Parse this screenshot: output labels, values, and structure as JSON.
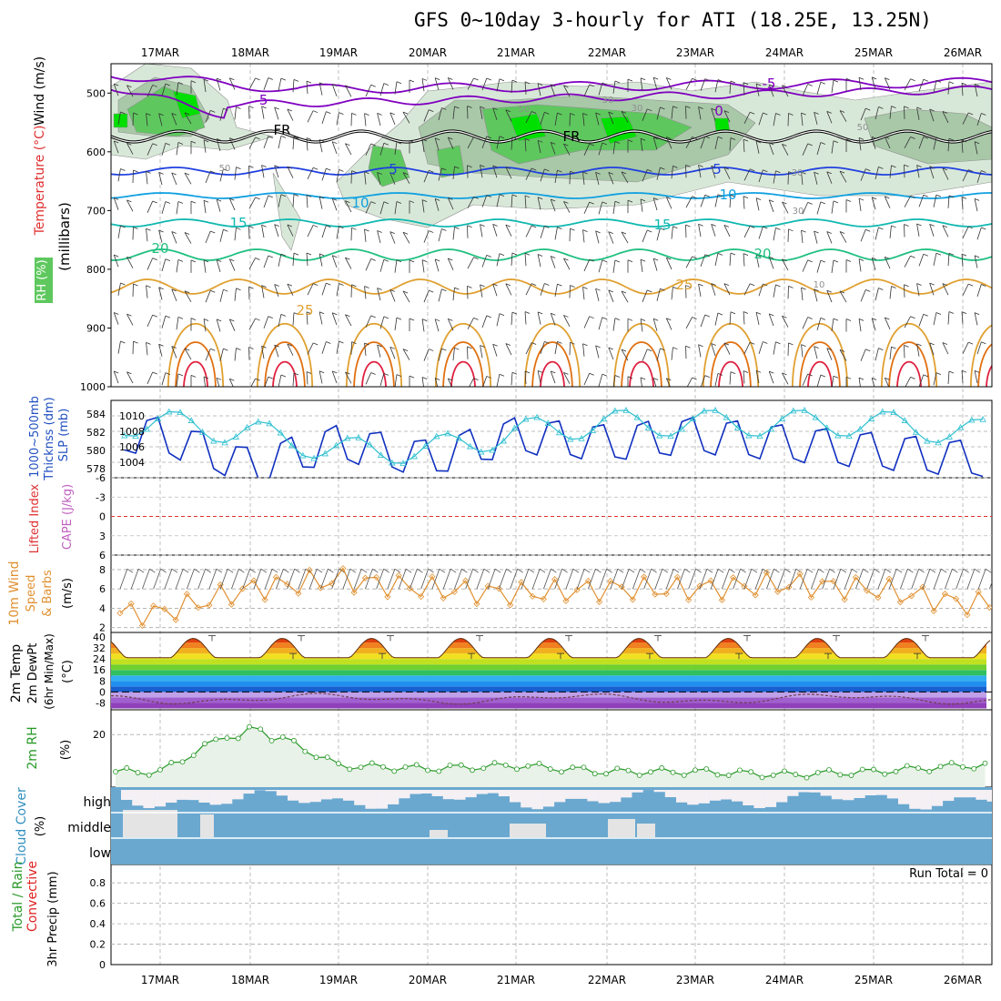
{
  "title": "GFS 0~10day 3-hourly for ATI (18.25E, 13.25N)",
  "dates": [
    "17MAR",
    "18MAR",
    "19MAR",
    "20MAR",
    "21MAR",
    "22MAR",
    "23MAR",
    "24MAR",
    "25MAR",
    "26MAR"
  ],
  "colors": {
    "rh_light": "#d8e8d8",
    "rh_mid": "#a8c8a8",
    "rh_green": "#5ec85e",
    "rh_bright": "#00e000",
    "freezing": "#000000",
    "purple": "#8000c0",
    "blue": "#2040e0",
    "lightblue": "#10a0e0",
    "teal": "#10b8b0",
    "green": "#20c080",
    "orange": "#e0a030",
    "darkorange": "#e07010",
    "red": "#e02040",
    "magenta": "#c000a0",
    "slp": "#1030c0",
    "thickness": "#30c0d0",
    "wind10": "#e09030",
    "rh2m": "#2a9a2a",
    "cloud": "#6aa8d0",
    "precip_conv": "#e02020"
  },
  "panels": {
    "upper": {
      "labels": [
        "Wind (m/s)",
        "Temperature (°C)",
        "RH (%)"
      ],
      "axis_label": "(millibars)",
      "yticks": [
        "500",
        "600",
        "700",
        "800",
        "900",
        "1000"
      ],
      "contour_labels": [
        {
          "text": "-5",
          "color": "purple"
        },
        {
          "text": "-5",
          "color": "purple"
        },
        {
          "text": "0",
          "color": "purple"
        },
        {
          "text": "FR",
          "color": "freezing"
        },
        {
          "text": "FR",
          "color": "freezing"
        },
        {
          "text": "5",
          "color": "blue"
        },
        {
          "text": "5",
          "color": "blue"
        },
        {
          "text": "10",
          "color": "lightblue"
        },
        {
          "text": "10",
          "color": "lightblue"
        },
        {
          "text": "15",
          "color": "teal"
        },
        {
          "text": "15",
          "color": "teal"
        },
        {
          "text": "20",
          "color": "green"
        },
        {
          "text": "20",
          "color": "green"
        },
        {
          "text": "25",
          "color": "orange"
        },
        {
          "text": "25",
          "color": "orange"
        },
        {
          "text": "50",
          "color": "grey"
        },
        {
          "text": "50",
          "color": "grey"
        },
        {
          "text": "30",
          "color": "grey"
        },
        {
          "text": "30",
          "color": "grey"
        },
        {
          "text": "10",
          "color": "grey"
        },
        {
          "text": "30",
          "color": "grey"
        },
        {
          "text": "50",
          "color": "grey"
        },
        {
          "text": "30",
          "color": "grey"
        }
      ]
    },
    "slp": {
      "labels": [
        "1000~500mb",
        "Thicknss (dm)",
        "SLP (mb)"
      ],
      "left_ticks": [
        "584",
        "582",
        "580",
        "578"
      ],
      "right_ticks": [
        "1010",
        "1008",
        "1006",
        "1004"
      ]
    },
    "cape": {
      "labels": [
        "Lifted Index",
        "CAPE (J/kg)"
      ],
      "yticks": [
        "-6",
        "-3",
        "0",
        "3",
        "6"
      ]
    },
    "wind10": {
      "labels": [
        "10m Wind",
        "Speed",
        "& Barbs",
        "(m/s)"
      ],
      "yticks": [
        "8",
        "6",
        "4",
        "2"
      ]
    },
    "temp2m": {
      "labels": [
        "2m Temp",
        "2m DewPt",
        "(6hr Min/Max)",
        "(°C)"
      ],
      "yticks": [
        "40",
        "32",
        "24",
        "16",
        "8",
        "0",
        "-8"
      ]
    },
    "rh2m": {
      "labels": [
        "2m RH",
        "(%)"
      ],
      "yticks": [
        "20"
      ]
    },
    "cloud": {
      "labels": [
        "Cloud Cover",
        "(%)"
      ],
      "rows": [
        "high",
        "middle",
        "low"
      ]
    },
    "precip": {
      "labels": [
        "Total / Rain",
        "Convective",
        "3hr Precip (mm)"
      ],
      "yticks": [
        "0.8",
        "0.6",
        "0.4",
        "0.2",
        "0"
      ],
      "run_total": "Run Total = 0"
    }
  },
  "chart_data": [
    {
      "type": "line",
      "title": "SLP and 1000~500mb Thickness",
      "x": [
        "17MAR",
        "18MAR",
        "19MAR",
        "20MAR",
        "21MAR",
        "22MAR",
        "23MAR",
        "24MAR",
        "25MAR",
        "26MAR"
      ],
      "series": [
        {
          "name": "SLP (mb)",
          "values": [
            1010,
            1006,
            1009,
            1007,
            1010,
            1009,
            1010,
            1009,
            1008,
            1007
          ]
        },
        {
          "name": "Thicknss (dm)",
          "values": [
            583,
            582,
            580,
            580,
            582,
            583,
            583,
            583,
            583,
            582
          ]
        }
      ]
    },
    {
      "type": "line",
      "title": "10m Wind Speed",
      "ylim": [
        2,
        9
      ],
      "x": [
        "17MAR",
        "18MAR",
        "19MAR",
        "20MAR",
        "21MAR",
        "22MAR",
        "23MAR",
        "24MAR",
        "25MAR",
        "26MAR"
      ],
      "series": [
        {
          "name": "Speed (m/s)",
          "values": [
            3.5,
            6,
            7,
            6,
            5.5,
            6,
            6,
            6.5,
            6,
            4.5
          ]
        }
      ]
    },
    {
      "type": "area",
      "title": "2m RH",
      "ylim": [
        0,
        25
      ],
      "x": [
        "17MAR",
        "18MAR",
        "19MAR",
        "20MAR",
        "21MAR",
        "22MAR",
        "23MAR",
        "24MAR",
        "25MAR",
        "26MAR"
      ],
      "series": [
        {
          "name": "RH (%)",
          "values": [
            8,
            24,
            10,
            9,
            10,
            8,
            8,
            7,
            8,
            10
          ]
        }
      ]
    },
    {
      "type": "area",
      "title": "3hr Precip",
      "ylim": [
        0,
        0.9
      ],
      "x": [
        "17MAR",
        "18MAR",
        "19MAR",
        "20MAR",
        "21MAR",
        "22MAR",
        "23MAR",
        "24MAR",
        "25MAR",
        "26MAR"
      ],
      "series": [
        {
          "name": "Precip (mm)",
          "values": [
            0,
            0,
            0,
            0,
            0,
            0,
            0,
            0,
            0,
            0
          ]
        }
      ]
    }
  ]
}
